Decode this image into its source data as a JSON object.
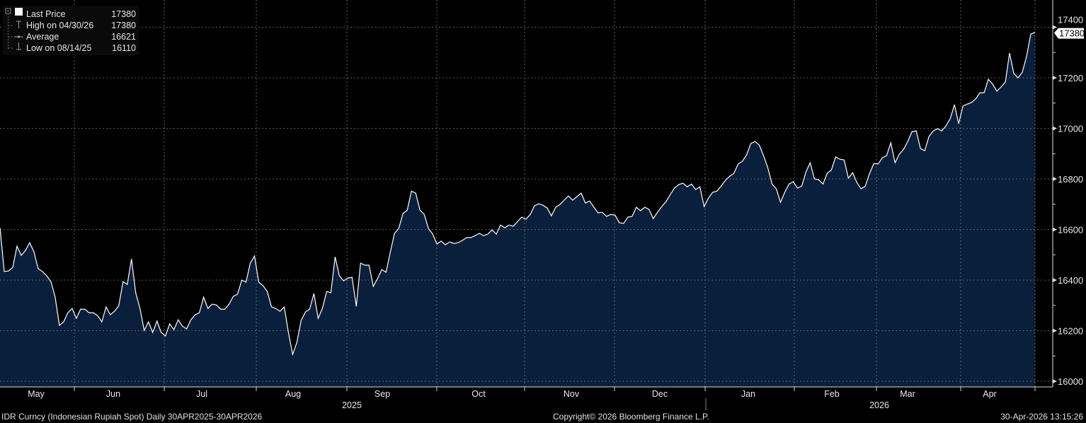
{
  "chart_data": {
    "type": "area",
    "title": "IDR Curncy (Indonesian Rupiah Spot) Daily 30APR2025-30APR2026",
    "ylim": [
      16000,
      17400
    ],
    "yticks": [
      "16000",
      "16200",
      "16400",
      "16600",
      "16800",
      "17000",
      "17200",
      "17400"
    ],
    "xticks": [
      "May",
      "Jun",
      "Jul",
      "Aug",
      "Sep",
      "Oct",
      "Nov",
      "Dec",
      "Jan",
      "Feb",
      "Mar",
      "Apr"
    ],
    "years": [
      "2025",
      "2026"
    ],
    "last_label": "17380",
    "grid": true,
    "fill_color": "#0a1f3b",
    "line_color": "#ffffff",
    "series": [
      {
        "name": "Last Price",
        "values": [
          16607,
          16434,
          16436,
          16450,
          16534,
          16498,
          16517,
          16548,
          16512,
          16445,
          16434,
          16417,
          16394,
          16333,
          16221,
          16235,
          16271,
          16288,
          16249,
          16285,
          16285,
          16271,
          16271,
          16260,
          16235,
          16294,
          16263,
          16277,
          16299,
          16394,
          16383,
          16484,
          16350,
          16288,
          16201,
          16235,
          16193,
          16238,
          16193,
          16179,
          16227,
          16204,
          16243,
          16218,
          16207,
          16243,
          16263,
          16271,
          16333,
          16288,
          16305,
          16302,
          16285,
          16285,
          16305,
          16336,
          16344,
          16400,
          16392,
          16467,
          16495,
          16392,
          16378,
          16355,
          16294,
          16288,
          16277,
          16294,
          16193,
          16106,
          16154,
          16241,
          16274,
          16285,
          16347,
          16249,
          16288,
          16355,
          16350,
          16492,
          16417,
          16397,
          16408,
          16411,
          16296,
          16467,
          16459,
          16459,
          16375,
          16406,
          16442,
          16431,
          16509,
          16585,
          16604,
          16663,
          16677,
          16752,
          16744,
          16677,
          16660,
          16604,
          16582,
          16543,
          16554,
          16540,
          16551,
          16545,
          16548,
          16557,
          16568,
          16568,
          16576,
          16585,
          16576,
          16582,
          16599,
          16582,
          16618,
          16607,
          16618,
          16613,
          16632,
          16649,
          16641,
          16660,
          16694,
          16702,
          16696,
          16685,
          16654,
          16688,
          16699,
          16716,
          16733,
          16716,
          16730,
          16744,
          16705,
          16713,
          16688,
          16666,
          16668,
          16652,
          16660,
          16657,
          16627,
          16624,
          16649,
          16652,
          16688,
          16674,
          16688,
          16680,
          16643,
          16668,
          16691,
          16710,
          16738,
          16764,
          16778,
          16783,
          16769,
          16780,
          16758,
          16769,
          16691,
          16724,
          16747,
          16752,
          16772,
          16794,
          16811,
          16822,
          16859,
          16870,
          16895,
          16940,
          16948,
          16934,
          16892,
          16845,
          16780,
          16761,
          16708,
          16747,
          16780,
          16789,
          16764,
          16772,
          16828,
          16864,
          16800,
          16797,
          16780,
          16822,
          16836,
          16887,
          16878,
          16875,
          16803,
          16825,
          16786,
          16761,
          16772,
          16822,
          16861,
          16859,
          16884,
          16892,
          16943,
          16864,
          16898,
          16917,
          16948,
          16987,
          16990,
          16920,
          16912,
          16968,
          16990,
          16999,
          16990,
          17010,
          17038,
          17094,
          17018,
          17088,
          17096,
          17102,
          17116,
          17141,
          17141,
          17194,
          17175,
          17147,
          17164,
          17183,
          17298,
          17217,
          17200,
          17222,
          17284,
          17373,
          17380
        ]
      }
    ]
  },
  "legend": {
    "items": [
      {
        "label": "Last Price",
        "value": "17380"
      },
      {
        "label": "High on 04/30/26",
        "value": "17380"
      },
      {
        "label": "Average",
        "value": "16621"
      },
      {
        "label": "Low on 08/14/25",
        "value": "16110"
      }
    ]
  },
  "footer": {
    "left": "IDR Curncy (Indonesian Rupiah Spot) Daily 30APR2025-30APR2026",
    "center": "Copyright© 2026 Bloomberg Finance L.P.",
    "right": "30-Apr-2026 13:15:26"
  }
}
